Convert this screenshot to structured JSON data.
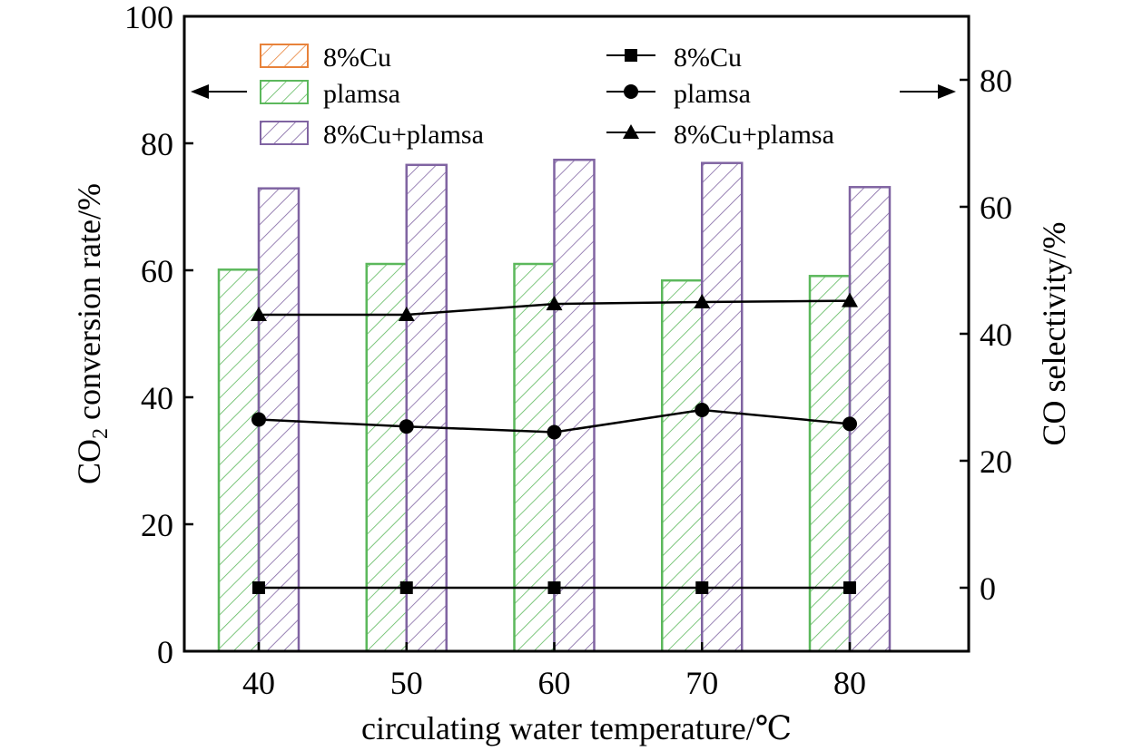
{
  "chart_data": {
    "type": "bar",
    "x_ticks": [
      "40",
      "50",
      "60",
      "70",
      "80"
    ],
    "xlabel": "circulating water temperature/℃",
    "ylabel_left": {
      "main": "CO",
      "sub": "2",
      "rest": " conversion rate/%"
    },
    "ylabel_right": "CO selectivity/%",
    "ylim_left": [
      0,
      100
    ],
    "yticks_left": [
      "0",
      "20",
      "40",
      "60",
      "80",
      "100"
    ],
    "ylim_right": [
      -10,
      90
    ],
    "yticks_right": [
      "0",
      "20",
      "40",
      "60",
      "80"
    ],
    "bar_series": [
      {
        "name": "8%Cu",
        "color": "#e8823a",
        "values": [
          0,
          0,
          0,
          0,
          0
        ]
      },
      {
        "name": "plamsa",
        "color": "#5cb85c",
        "values": [
          60.1,
          61.0,
          61.0,
          58.4,
          59.1
        ]
      },
      {
        "name": "8%Cu+plamsa",
        "color": "#8064a2",
        "values": [
          72.9,
          76.6,
          77.4,
          76.9,
          73.1
        ]
      }
    ],
    "line_series": [
      {
        "name": "8%Cu",
        "marker": "square",
        "values": [
          0,
          0,
          0,
          0,
          0
        ]
      },
      {
        "name": "plamsa",
        "marker": "circle",
        "values": [
          26.5,
          25.4,
          24.5,
          28.0,
          25.8
        ]
      },
      {
        "name": "8%Cu+plamsa",
        "marker": "triangle",
        "values": [
          43.0,
          43.0,
          44.7,
          45.0,
          45.2
        ]
      }
    ],
    "annotations": {
      "left_arrow": "points to left axis",
      "right_arrow": "points to right axis"
    },
    "grid": false,
    "legend_position": "top"
  }
}
